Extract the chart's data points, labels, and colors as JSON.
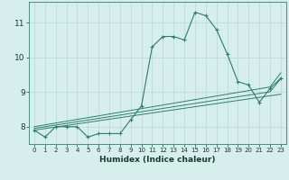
{
  "title": "",
  "xlabel": "Humidex (Indice chaleur)",
  "ylabel": "",
  "bg_color": "#d6eeec",
  "grid_color": "#b8d8d4",
  "line_color": "#2e7d6e",
  "x_data": [
    0,
    1,
    2,
    3,
    4,
    5,
    6,
    7,
    8,
    9,
    10,
    11,
    12,
    13,
    14,
    15,
    16,
    17,
    18,
    19,
    20,
    21,
    22,
    23
  ],
  "y_main": [
    7.9,
    7.7,
    8.0,
    8.0,
    8.0,
    7.7,
    7.8,
    7.8,
    7.8,
    8.2,
    8.6,
    10.3,
    10.6,
    10.6,
    10.5,
    11.3,
    11.2,
    10.8,
    10.1,
    9.3,
    9.2,
    8.7,
    9.1,
    9.4
  ],
  "y_line1": [
    7.9,
    7.945,
    7.99,
    8.035,
    8.08,
    8.125,
    8.17,
    8.215,
    8.26,
    8.305,
    8.35,
    8.395,
    8.44,
    8.485,
    8.53,
    8.575,
    8.62,
    8.665,
    8.71,
    8.755,
    8.8,
    8.845,
    8.89,
    8.935
  ],
  "y_line2": [
    7.95,
    7.998,
    8.046,
    8.094,
    8.142,
    8.19,
    8.238,
    8.286,
    8.334,
    8.382,
    8.43,
    8.478,
    8.526,
    8.574,
    8.622,
    8.67,
    8.718,
    8.766,
    8.814,
    8.862,
    8.91,
    8.958,
    9.006,
    9.38
  ],
  "y_line3": [
    8.0,
    8.052,
    8.104,
    8.156,
    8.208,
    8.26,
    8.312,
    8.364,
    8.416,
    8.468,
    8.52,
    8.572,
    8.624,
    8.676,
    8.728,
    8.78,
    8.832,
    8.884,
    8.936,
    8.988,
    9.04,
    9.092,
    9.144,
    9.55
  ],
  "ylim": [
    7.5,
    11.6
  ],
  "xlim": [
    -0.5,
    23.5
  ],
  "yticks": [
    8,
    9,
    10,
    11
  ],
  "xticks": [
    0,
    1,
    2,
    3,
    4,
    5,
    6,
    7,
    8,
    9,
    10,
    11,
    12,
    13,
    14,
    15,
    16,
    17,
    18,
    19,
    20,
    21,
    22,
    23
  ],
  "xlabel_fontsize": 6.5,
  "xtick_fontsize": 5.0,
  "ytick_fontsize": 6.5
}
